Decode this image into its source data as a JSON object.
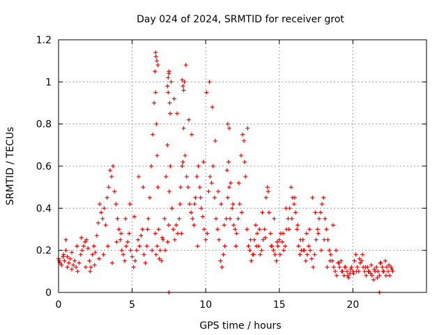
{
  "chart_data": {
    "type": "scatter",
    "title": "Day 024 of 2024, SRMTID for receiver grot",
    "xlabel": "GPS time / hours",
    "ylabel": "SRMTID / TECUs",
    "xlim": [
      0,
      25
    ],
    "ylim": [
      0,
      1.2
    ],
    "xticks": [
      "0",
      "5",
      "10",
      "15",
      "20"
    ],
    "yticks": [
      "0",
      "0.2",
      "0.4",
      "0.6",
      "0.8",
      "1",
      "1.2"
    ],
    "xtick_values": [
      0,
      5,
      10,
      15,
      20
    ],
    "ytick_values": [
      0,
      0.2,
      0.4,
      0.6,
      0.8,
      1.0,
      1.2
    ],
    "grid": true,
    "marker": "+",
    "series": [
      {
        "name": "SRMTID",
        "color": "#ff0000",
        "x": [
          0.0,
          0.1,
          0.2,
          0.3,
          0.4,
          0.5,
          0.5,
          0.6,
          0.7,
          0.8,
          0.9,
          1.0,
          1.1,
          1.2,
          1.3,
          1.4,
          1.5,
          1.6,
          1.7,
          1.8,
          1.9,
          2.0,
          2.1,
          2.2,
          2.3,
          2.4,
          2.5,
          2.6,
          2.7,
          2.8,
          2.9,
          3.0,
          3.1,
          3.2,
          3.3,
          3.4,
          3.5,
          3.6,
          3.7,
          3.8,
          3.9,
          4.0,
          4.1,
          4.2,
          4.3,
          4.4,
          4.5,
          4.6,
          4.7,
          4.8,
          4.9,
          5.0,
          5.1,
          5.2,
          5.3,
          5.4,
          5.5,
          5.6,
          5.7,
          5.8,
          5.9,
          6.0,
          6.1,
          6.2,
          6.3,
          6.4,
          6.5,
          6.55,
          6.6,
          6.65,
          6.7,
          6.75,
          6.8,
          6.9,
          7.0,
          7.1,
          7.2,
          7.3,
          7.4,
          7.45,
          7.5,
          7.55,
          7.6,
          7.7,
          7.8,
          7.9,
          8.0,
          8.1,
          8.2,
          8.3,
          8.4,
          8.5,
          8.6,
          8.7,
          8.8,
          8.9,
          9.0,
          9.1,
          9.2,
          9.3,
          9.4,
          9.5,
          9.6,
          9.7,
          9.8,
          9.9,
          10.0,
          10.1,
          10.2,
          10.3,
          10.4,
          10.5,
          10.6,
          10.7,
          10.8,
          10.9,
          11.0,
          11.1,
          11.2,
          11.3,
          11.4,
          11.5,
          11.6,
          11.7,
          11.8,
          11.9,
          12.0,
          12.1,
          12.2,
          12.3,
          12.4,
          12.5,
          12.6,
          12.7,
          12.8,
          12.9,
          13.0,
          13.1,
          13.2,
          13.3,
          13.4,
          13.5,
          13.6,
          13.7,
          13.8,
          13.9,
          14.0,
          14.1,
          14.2,
          14.3,
          14.4,
          14.5,
          14.6,
          14.7,
          14.8,
          14.9,
          15.0,
          15.1,
          15.2,
          15.3,
          15.4,
          15.5,
          15.6,
          15.7,
          15.8,
          15.9,
          16.0,
          16.1,
          16.2,
          16.3,
          16.4,
          16.5,
          16.6,
          16.7,
          16.8,
          16.9,
          17.0,
          17.1,
          17.2,
          17.3,
          17.4,
          17.5,
          17.6,
          17.7,
          17.8,
          17.9,
          18.0,
          18.1,
          18.2,
          18.3,
          18.4,
          18.5,
          18.6,
          18.7,
          18.8,
          18.9,
          19.0,
          19.1,
          19.2,
          19.3,
          19.4,
          19.5,
          19.6,
          19.7,
          19.8,
          19.9,
          20.0,
          20.1,
          20.2,
          20.3,
          20.4,
          20.5,
          20.6,
          20.7,
          20.8,
          20.9,
          21.0,
          21.1,
          21.2,
          21.3,
          21.4,
          21.5,
          21.6,
          21.7,
          21.8,
          21.9,
          22.0,
          22.1,
          22.2,
          22.3,
          22.4,
          22.5,
          22.6,
          22.7,
          0.05,
          0.35,
          0.6,
          0.9,
          1.25,
          1.55,
          1.85,
          2.15,
          2.45,
          2.75,
          3.05,
          3.35,
          3.65,
          3.95,
          4.25,
          4.55,
          4.85,
          5.15,
          5.45,
          5.75,
          6.05,
          6.35,
          6.58,
          6.62,
          6.7,
          6.85,
          7.05,
          7.25,
          7.42,
          7.48,
          7.52,
          7.58,
          7.65,
          7.85,
          8.05,
          8.25,
          8.35,
          8.45,
          8.55,
          8.65,
          8.85,
          9.05,
          9.25,
          9.45,
          9.65,
          9.85,
          10.05,
          10.25,
          10.45,
          10.65,
          10.85,
          11.05,
          11.25,
          11.45,
          11.55,
          11.65,
          11.85,
          12.05,
          12.25,
          12.45,
          12.65,
          12.85,
          13.05,
          13.25,
          13.45,
          13.65,
          13.85,
          14.05,
          14.25,
          14.45,
          14.65,
          14.85,
          15.05,
          15.25,
          15.45,
          15.65,
          15.85,
          16.05,
          16.25,
          16.45,
          16.65,
          16.85,
          17.05,
          17.25,
          17.45,
          17.65,
          17.85,
          18.05,
          18.25,
          18.45,
          18.65,
          18.85,
          19.05,
          19.25,
          19.45,
          19.65,
          19.85,
          20.05,
          20.25,
          20.45,
          20.65,
          20.85,
          21.05,
          21.25,
          21.45,
          21.65,
          21.85,
          22.05,
          22.25,
          22.45,
          22.65,
          7.5,
          21.8,
          6.6,
          6.62,
          6.68,
          6.75,
          7.4,
          7.45,
          7.5,
          8.4,
          8.45,
          8.5,
          11.5,
          11.6
        ],
        "y": [
          0.16,
          0.14,
          0.13,
          0.17,
          0.15,
          0.2,
          0.25,
          0.12,
          0.14,
          0.16,
          0.11,
          0.13,
          0.15,
          0.12,
          0.1,
          0.14,
          0.18,
          0.2,
          0.22,
          0.24,
          0.25,
          0.21,
          0.15,
          0.12,
          0.18,
          0.22,
          0.19,
          0.27,
          0.33,
          0.42,
          0.38,
          0.35,
          0.4,
          0.32,
          0.45,
          0.5,
          0.58,
          0.55,
          0.6,
          0.48,
          0.42,
          0.35,
          0.3,
          0.25,
          0.2,
          0.18,
          0.15,
          0.22,
          0.24,
          0.28,
          0.2,
          0.17,
          0.12,
          0.15,
          0.2,
          0.25,
          0.22,
          0.27,
          0.3,
          0.18,
          0.14,
          0.22,
          0.35,
          0.45,
          0.6,
          0.75,
          0.9,
          1.05,
          0.95,
          0.8,
          0.65,
          0.5,
          0.3,
          0.2,
          0.15,
          0.25,
          0.35,
          0.55,
          0.7,
          0.95,
          1.05,
          0.9,
          0.6,
          0.4,
          0.3,
          0.25,
          0.32,
          0.28,
          0.35,
          0.5,
          0.6,
          0.78,
          0.65,
          0.55,
          0.5,
          0.42,
          0.38,
          0.35,
          0.32,
          0.45,
          0.55,
          0.6,
          0.5,
          0.4,
          0.36,
          0.3,
          0.25,
          0.28,
          0.48,
          0.55,
          0.52,
          0.6,
          0.45,
          0.35,
          0.3,
          0.25,
          0.15,
          0.12,
          0.18,
          0.22,
          0.35,
          0.45,
          0.5,
          0.52,
          0.4,
          0.32,
          0.3,
          0.28,
          0.35,
          0.42,
          0.65,
          0.75,
          0.72,
          0.55,
          0.3,
          0.22,
          0.2,
          0.15,
          0.18,
          0.25,
          0.32,
          0.28,
          0.22,
          0.18,
          0.2,
          0.25,
          0.3,
          0.45,
          0.5,
          0.38,
          0.28,
          0.22,
          0.2,
          0.18,
          0.15,
          0.22,
          0.25,
          0.28,
          0.24,
          0.2,
          0.22,
          0.3,
          0.35,
          0.4,
          0.5,
          0.45,
          0.42,
          0.38,
          0.3,
          0.22,
          0.18,
          0.2,
          0.25,
          0.2,
          0.15,
          0.18,
          0.22,
          0.2,
          0.16,
          0.12,
          0.18,
          0.25,
          0.3,
          0.35,
          0.38,
          0.42,
          0.45,
          0.35,
          0.3,
          0.25,
          0.2,
          0.18,
          0.15,
          0.12,
          0.1,
          0.08,
          0.14,
          0.12,
          0.15,
          0.1,
          0.08,
          0.12,
          0.1,
          0.07,
          0.09,
          0.12,
          0.1,
          0.15,
          0.18,
          0.12,
          0.1,
          0.14,
          0.15,
          0.12,
          0.1,
          0.08,
          0.12,
          0.1,
          0.09,
          0.08,
          0.06,
          0.1,
          0.12,
          0.1,
          0.08,
          0.14,
          0.12,
          0.1,
          0.15,
          0.12,
          0.1,
          0.08,
          0.12,
          0.1,
          0.15,
          0.18,
          0.17,
          0.19,
          0.22,
          0.26,
          0.12,
          0.1,
          0.13,
          0.16,
          0.18,
          0.22,
          0.14,
          0.24,
          0.28,
          0.35,
          0.42,
          0.36,
          0.55,
          0.5,
          0.3,
          0.2,
          0.28,
          0.18,
          0.22,
          0.16,
          0.26,
          0.2,
          0.24,
          0.32,
          0.48,
          0.85,
          1.0,
          0.92,
          0.85,
          0.42,
          0.28,
          0.62,
          1.0,
          1.08,
          0.82,
          0.75,
          0.42,
          0.22,
          0.45,
          0.62,
          0.95,
          1.0,
          0.88,
          0.72,
          0.48,
          0.42,
          0.32,
          0.58,
          0.62,
          0.35,
          0.42,
          0.22,
          0.52,
          0.38,
          0.62,
          0.78,
          0.25,
          0.18,
          0.22,
          0.3,
          0.38,
          0.26,
          0.48,
          0.22,
          0.35,
          0.24,
          0.18,
          0.28,
          0.4,
          0.3,
          0.35,
          0.45,
          0.32,
          0.25,
          0.2,
          0.28,
          0.3,
          0.45,
          0.38,
          0.28,
          0.2,
          0.25,
          0.12,
          0.15,
          0.32,
          0.2,
          0.14,
          0.1,
          0.12,
          0.08,
          0.11,
          0.09,
          0.1,
          0.16,
          0.18,
          0.12,
          0.1,
          0.13,
          0.11,
          0.07,
          0.14,
          0.1,
          0.08,
          0.13,
          0.11,
          0.0,
          0.0,
          1.14,
          1.12,
          1.1,
          1.08,
          0.98,
          1.02,
          1.04,
          1.01,
          0.98,
          0.96,
          0.8,
          0.78
        ]
      }
    ]
  }
}
